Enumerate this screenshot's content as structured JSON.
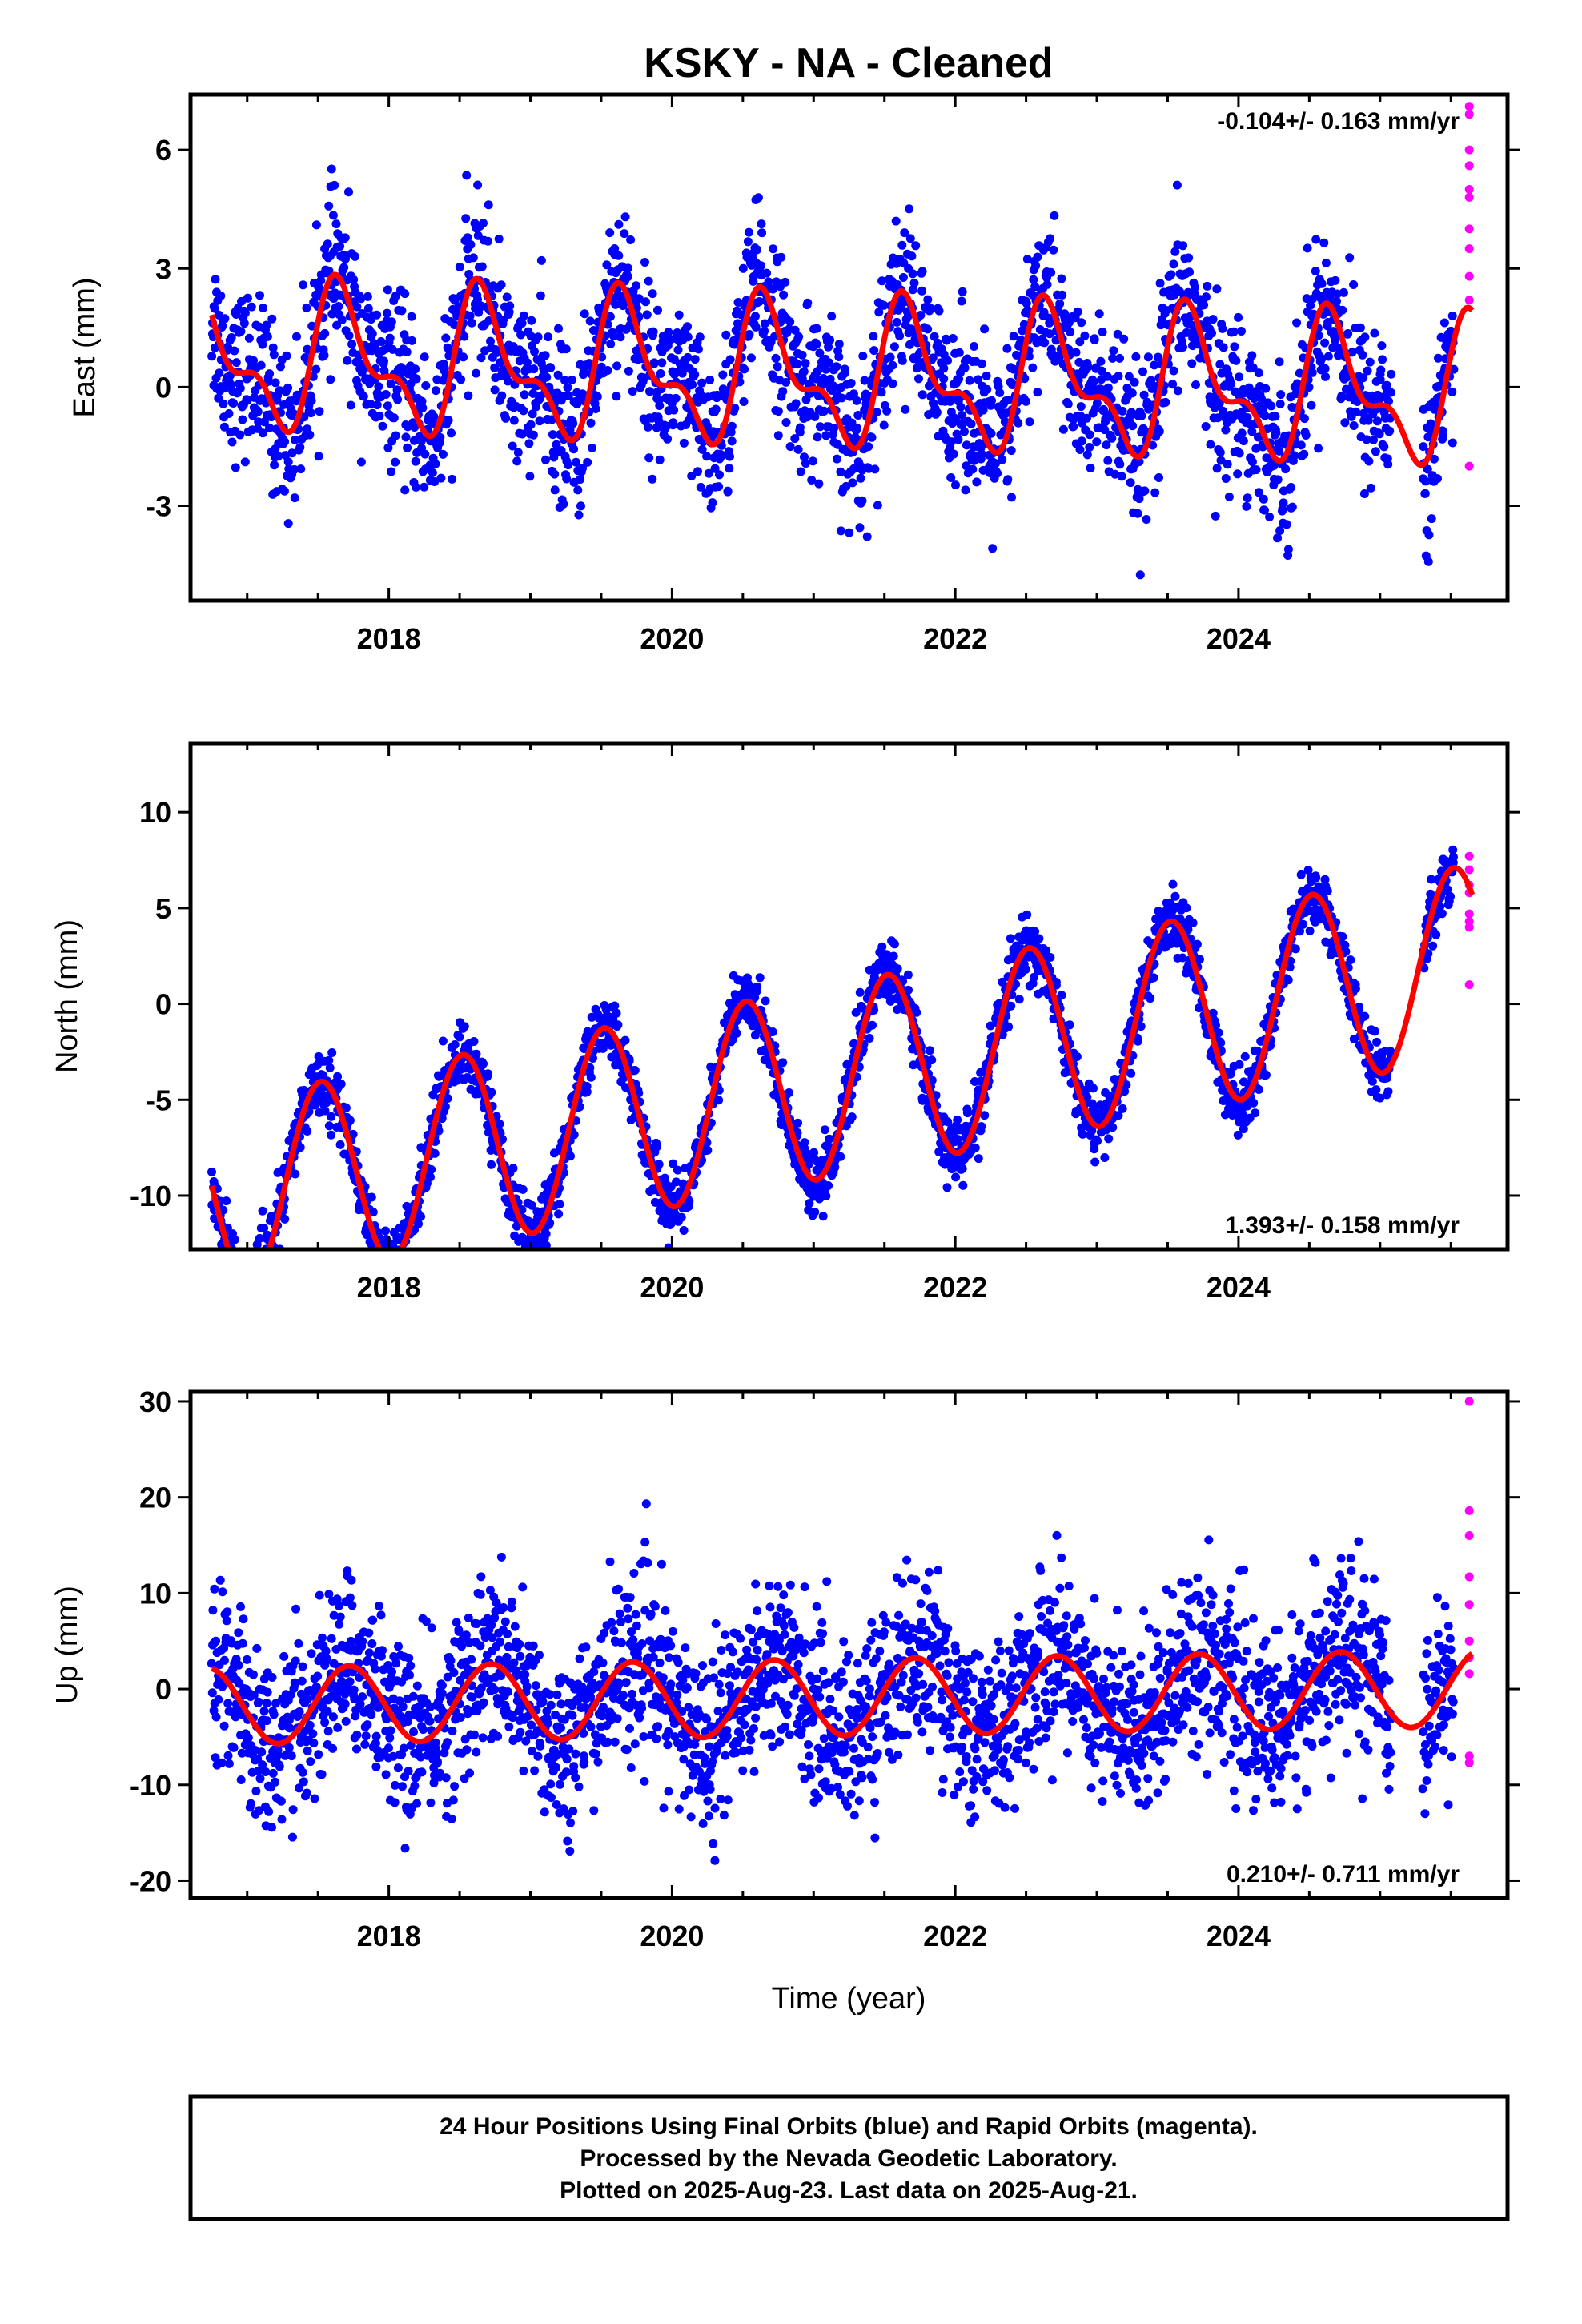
{
  "chart_data": {
    "title": "KSKY  - NA - Cleaned",
    "xlabel": "Time (year)",
    "x_range": [
      2016.6,
      2025.9
    ],
    "x_ticks": [
      "2018",
      "2020",
      "2022",
      "2024"
    ],
    "colors": {
      "final": "#0000ff",
      "rapid": "#ff00ff",
      "model": "#ff0000",
      "frame": "#000000"
    },
    "panels": [
      {
        "type": "scatter",
        "component": "East",
        "ylabel": "East (mm)",
        "y_range": [
          -5.4,
          7.4
        ],
        "y_ticks": [
          "6",
          "3",
          "0",
          "-3"
        ],
        "rate": "-0.104+/- 0.163 mm/yr",
        "rate_position": "top-right",
        "model": {
          "rate": -0.104,
          "offset": 0.3,
          "annual_amp": 1.55,
          "semiannual_amp": 0.8,
          "peak_year_fraction": 0.68
        },
        "noise_mm": 1.0,
        "rapid_values": [
          7.1,
          6.9,
          6.0,
          5.6,
          5.0,
          4.8,
          4.0,
          3.5,
          2.8,
          2.2,
          -2.0
        ]
      },
      {
        "type": "scatter",
        "component": "North",
        "ylabel": "North (mm)",
        "y_range": [
          -12.8,
          13.6
        ],
        "y_ticks": [
          "10",
          "5",
          "0",
          "-5",
          "-10"
        ],
        "rate": "1.393+/- 0.158 mm/yr",
        "rate_position": "bottom-right",
        "model": {
          "rate": 1.393,
          "offset": -4.2,
          "annual_amp": 5.0,
          "semiannual_amp": 0.0,
          "peak_year_fraction": 0.52
        },
        "noise_mm": 0.8,
        "rapid_values": [
          7.7,
          7.0,
          6.2,
          5.8,
          4.7,
          4.3,
          4.0,
          1.0
        ]
      },
      {
        "type": "scatter",
        "component": "Up",
        "ylabel": "Up (mm)",
        "y_range": [
          -21.8,
          31.0
        ],
        "y_ticks": [
          "30",
          "20",
          "10",
          "0",
          "-10",
          "-20"
        ],
        "rate": "0.210+/- 0.711 mm/yr",
        "rate_position": "bottom-right",
        "model": {
          "rate": 0.21,
          "offset": -0.9,
          "annual_amp": 4.0,
          "semiannual_amp": 0.0,
          "peak_year_fraction": 0.72
        },
        "noise_mm": 4.5,
        "rapid_values": [
          30.0,
          18.6,
          16.0,
          11.7,
          8.8,
          5.0,
          3.3,
          1.6,
          -7.0,
          -7.7
        ]
      }
    ],
    "final_series": {
      "name": "Final Orbits (blue)",
      "x_start": 2016.75,
      "x_end": 2025.52,
      "points_per_panel": 2700
    },
    "rapid_series": {
      "name": "Rapid Orbits (magenta)",
      "x": 2025.63
    }
  },
  "footer": {
    "lines": [
      "24 Hour Positions Using Final Orbits (blue) and Rapid Orbits (magenta).",
      "Processed by the Nevada Geodetic Laboratory.",
      "Plotted on 2025-Aug-23. Last data on 2025-Aug-21."
    ]
  }
}
